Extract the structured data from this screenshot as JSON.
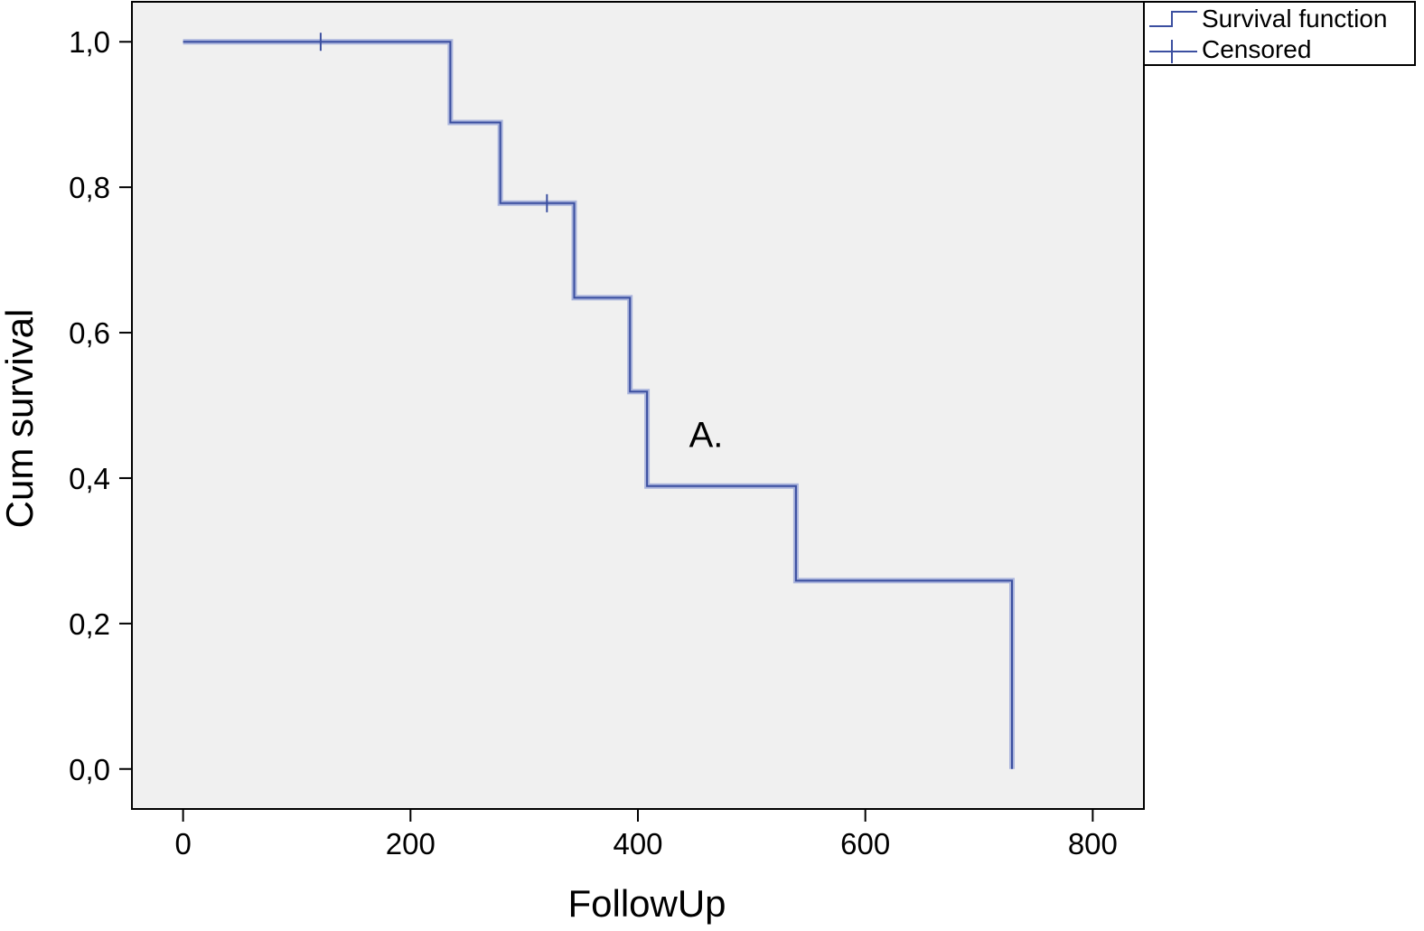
{
  "chart_data": {
    "type": "line",
    "step": true,
    "title": "",
    "xlabel": "FollowUp",
    "ylabel": "Cum survival",
    "xlim": [
      -45,
      845
    ],
    "ylim": [
      -0.055,
      1.055
    ],
    "x_ticks": [
      0,
      200,
      400,
      600,
      800
    ],
    "x_tick_labels": [
      "0",
      "200",
      "400",
      "600",
      "800"
    ],
    "y_ticks": [
      0.0,
      0.2,
      0.4,
      0.6,
      0.8,
      1.0
    ],
    "y_tick_labels": [
      "0,0",
      "0,2",
      "0,4",
      "0,6",
      "0,8",
      "1,0"
    ],
    "grid": false,
    "plot_background": "#f0f0f0",
    "line_color": "#3b4fa0",
    "series": [
      {
        "name": "Survival function",
        "x": [
          0,
          235,
          235,
          279,
          279,
          344,
          344,
          393,
          393,
          408,
          408,
          539,
          539,
          729,
          729
        ],
        "y": [
          1.0,
          1.0,
          0.889,
          0.889,
          0.778,
          0.778,
          0.648,
          0.648,
          0.519,
          0.519,
          0.389,
          0.389,
          0.259,
          0.259,
          0.0
        ]
      }
    ],
    "censored": {
      "name": "Censored",
      "x": [
        121,
        320
      ],
      "y": [
        1.0,
        0.778
      ]
    },
    "legend": {
      "position": "top-right outside",
      "entries": [
        "Survival function",
        "Censored"
      ]
    },
    "annotation": {
      "text": "A.",
      "x": 445,
      "y": 0.46
    }
  }
}
